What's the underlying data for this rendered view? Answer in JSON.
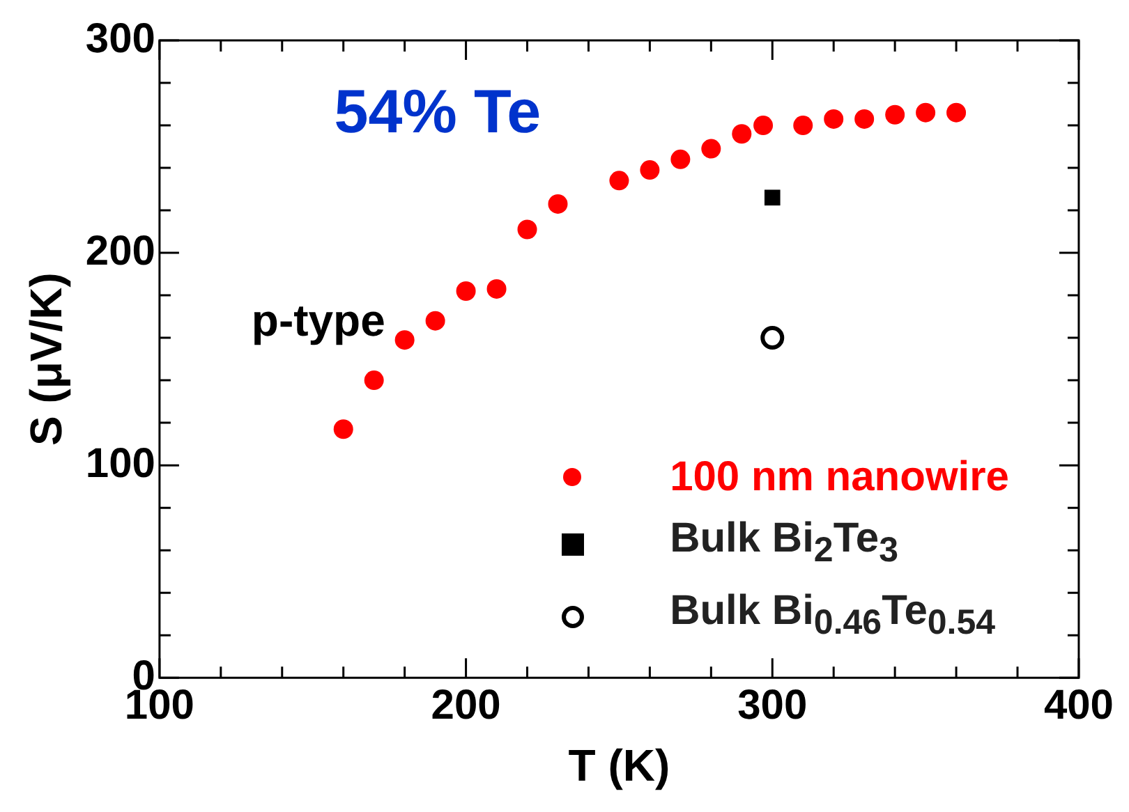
{
  "chart_data": {
    "type": "scatter",
    "xlabel": "T (K)",
    "ylabel": "S (μV/K)",
    "annotations": [
      "54% Te",
      "p-type"
    ],
    "series": [
      {
        "name": "100 nm nanowire",
        "color": "#ff0000",
        "marker": "circle",
        "x": [
          160,
          170,
          180,
          190,
          200,
          210,
          220,
          230,
          250,
          260,
          270,
          280,
          290,
          297,
          310,
          320,
          330,
          340,
          350,
          360
        ],
        "values": [
          117,
          140,
          159,
          168,
          182,
          183,
          211,
          223,
          234,
          239,
          244,
          249,
          256,
          260,
          260,
          263,
          263,
          265,
          266,
          266
        ]
      },
      {
        "name": "Bulk Bi$_{2}$Te$_{3}$",
        "color": "#000000",
        "marker": "square",
        "x": [
          300
        ],
        "values": [
          226
        ]
      },
      {
        "name": "Bulk Bi$_{0.46}$Te$_{0.54}$",
        "color": "#000000",
        "marker": "circle",
        "x": [
          300
        ],
        "values": [
          160
        ]
      }
    ],
    "xlim": [
      100,
      400
    ],
    "ylim": [
      0,
      300
    ],
    "xticks": [
      100,
      {
        "value": 120,
        "label": null
      },
      {
        "value": 140,
        "label": null
      },
      {
        "value": 160,
        "label": null
      },
      {
        "value": 180,
        "label": null
      },
      200,
      {
        "value": 220,
        "label": null
      },
      {
        "value": 240,
        "label": null
      },
      {
        "value": 260,
        "label": null
      },
      {
        "value": 280,
        "label": null
      },
      300,
      {
        "value": 320,
        "label": null
      },
      {
        "value": 340,
        "label": null
      },
      {
        "value": 360,
        "label": null
      },
      {
        "value": 380,
        "label": null
      },
      400
    ],
    "yticks": [
      0,
      {
        "value": 20,
        "label": null
      },
      {
        "value": 40,
        "label": null
      },
      {
        "value": 60,
        "label": null
      },
      {
        "value": 80,
        "label": null
      },
      100,
      {
        "value": 120,
        "label": null
      },
      {
        "value": 140,
        "label": null
      },
      {
        "value": 160,
        "label": null
      },
      {
        "value": 180,
        "label": null
      },
      200,
      {
        "value": 220,
        "label": null
      },
      {
        "value": 240,
        "label": null
      },
      {
        "value": 260,
        "label": null
      },
      {
        "value": 280,
        "label": null
      },
      300
    ],
    "grid": false,
    "legend": "bottom right"
  }
}
